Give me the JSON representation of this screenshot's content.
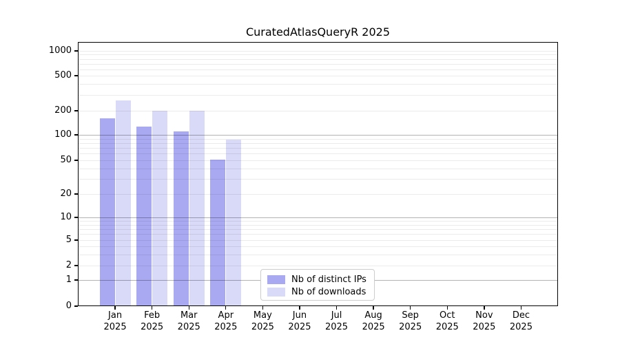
{
  "chart_data": {
    "type": "bar",
    "title": "CuratedAtlasQueryR 2025",
    "y_scale": "symlog",
    "ylim": [
      0,
      1000
    ],
    "grid": "both",
    "y_ticks": [
      0,
      1,
      2,
      5,
      10,
      20,
      50,
      100,
      200,
      500,
      1000
    ],
    "categories": [
      {
        "month": "Jan",
        "year": "2025"
      },
      {
        "month": "Feb",
        "year": "2025"
      },
      {
        "month": "Mar",
        "year": "2025"
      },
      {
        "month": "Apr",
        "year": "2025"
      },
      {
        "month": "May",
        "year": "2025"
      },
      {
        "month": "Jun",
        "year": "2025"
      },
      {
        "month": "Jul",
        "year": "2025"
      },
      {
        "month": "Aug",
        "year": "2025"
      },
      {
        "month": "Sep",
        "year": "2025"
      },
      {
        "month": "Oct",
        "year": "2025"
      },
      {
        "month": "Nov",
        "year": "2025"
      },
      {
        "month": "Dec",
        "year": "2025"
      }
    ],
    "series": [
      {
        "name": "Nb of distinct IPs",
        "color": "#a9a9f2",
        "values": [
          160,
          127,
          110,
          51,
          0,
          0,
          0,
          0,
          0,
          0,
          0,
          0
        ]
      },
      {
        "name": "Nb of downloads",
        "color": "#d9d9f8",
        "values": [
          260,
          200,
          200,
          88,
          0,
          0,
          0,
          0,
          0,
          0,
          0,
          0
        ]
      }
    ],
    "legend": {
      "position": "bottom-center"
    }
  }
}
